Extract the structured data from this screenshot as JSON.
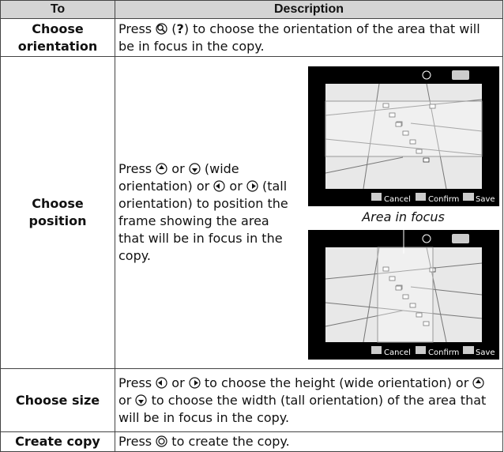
{
  "table": {
    "headers": [
      "To",
      "Description"
    ],
    "rows": [
      {
        "to": "Choose orientation",
        "description": [
          "Press",
          "(",
          "?",
          ") to choose the orientation of the area that will be in focus in the copy."
        ]
      },
      {
        "to": "Choose position",
        "description": [
          "Press",
          "or",
          "(wide orientation) or",
          "or",
          "(tall orientation) to position the frame showing the area that will be in focus in the copy."
        ],
        "caption": "Area in focus",
        "screens": [
          {
            "cancel": "Cancel",
            "confirm": "Confirm",
            "save": "Save"
          },
          {
            "cancel": "Cancel",
            "confirm": "Confirm",
            "save": "Save"
          }
        ]
      },
      {
        "to": "Choose size",
        "description": [
          "Press",
          "or",
          "to choose the height (wide orientation) or",
          "or",
          "to choose the width (tall orientation) of the area that will be in focus in the copy."
        ]
      },
      {
        "to": "Create copy",
        "description": [
          "Press",
          "to create the copy."
        ]
      }
    ]
  }
}
